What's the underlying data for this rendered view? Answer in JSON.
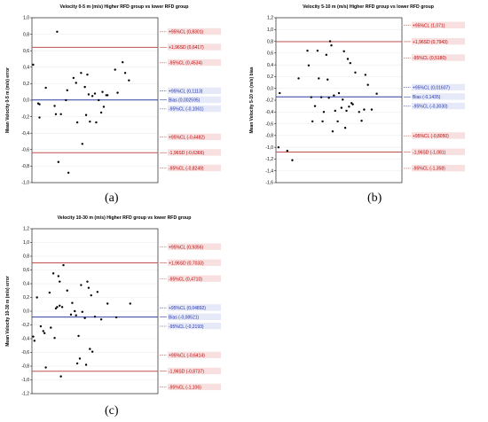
{
  "panel_labels": [
    "(a)",
    "(b)",
    "(c)"
  ],
  "colors": {
    "sd_line": "#c0504d",
    "bias_line": "#2f3f9f",
    "ci_line": "#c0504d",
    "ci_line_blue": "#2f3f9f",
    "sd_text": "#c00000",
    "bias_text": "#1f2fb0",
    "label_bg": "#f8e0e0",
    "bias_label_bg": "#e6eaf8",
    "point": "#000000",
    "grid": "#e8e8e8"
  },
  "chart_data": [
    {
      "type": "scatter",
      "title": "Velocity 0-5 m (m/s) Higher RFD group vs lower RFD group",
      "ylabel": "Mean Velocity 0-5 m (m/s) error",
      "xlabel": "",
      "ylim": [
        -1.0,
        1.0
      ],
      "yticks": [
        "-1,0",
        "-0,8",
        "-0,6",
        "-0,4",
        "-0,2",
        "0,0",
        "0,2",
        "0,4",
        "0,6",
        "0,8",
        "1,0"
      ],
      "ytick_values": [
        -1.0,
        -0.8,
        -0.6,
        -0.4,
        -0.2,
        0.0,
        0.2,
        0.4,
        0.6,
        0.8,
        1.0
      ],
      "grid": true,
      "lines": [
        {
          "label": "+95%CL (0,8301)",
          "y": 0.8301,
          "kind": "ci"
        },
        {
          "label": "+1,96SD (0,6417)",
          "y": 0.6417,
          "kind": "sd"
        },
        {
          "label": "-95%CL (0,4534)",
          "y": 0.4534,
          "kind": "ci"
        },
        {
          "label": "+95%CL (0,1113)",
          "y": 0.1113,
          "kind": "ci_blue"
        },
        {
          "label": "Bias (0,002595)",
          "y": 0.002595,
          "kind": "bias"
        },
        {
          "label": "-95%CL (-0,1061)",
          "y": -0.1061,
          "kind": "ci_blue"
        },
        {
          "label": "+95%CL (-0,4482)",
          "y": -0.4482,
          "kind": "ci"
        },
        {
          "label": "-1,96SD (-0,6366)",
          "y": -0.6366,
          "kind": "sd"
        },
        {
          "label": "-95%CL (-0,8249)",
          "y": -0.8249,
          "kind": "ci"
        }
      ],
      "points": [
        {
          "x": 0.01,
          "y": 0.43
        },
        {
          "x": 0.05,
          "y": -0.04
        },
        {
          "x": 0.06,
          "y": -0.05
        },
        {
          "x": 0.06,
          "y": -0.21
        },
        {
          "x": 0.11,
          "y": 0.15
        },
        {
          "x": 0.18,
          "y": -0.07
        },
        {
          "x": 0.19,
          "y": -0.17
        },
        {
          "x": 0.2,
          "y": 0.83
        },
        {
          "x": 0.21,
          "y": -0.75
        },
        {
          "x": 0.23,
          "y": -0.17
        },
        {
          "x": 0.27,
          "y": 0.0
        },
        {
          "x": 0.28,
          "y": 0.12
        },
        {
          "x": 0.29,
          "y": -0.88
        },
        {
          "x": 0.33,
          "y": 0.27
        },
        {
          "x": 0.35,
          "y": 0.21
        },
        {
          "x": 0.36,
          "y": -0.27
        },
        {
          "x": 0.39,
          "y": 0.33
        },
        {
          "x": 0.4,
          "y": -0.53
        },
        {
          "x": 0.42,
          "y": 0.16
        },
        {
          "x": 0.43,
          "y": -0.18
        },
        {
          "x": 0.44,
          "y": 0.31
        },
        {
          "x": 0.45,
          "y": 0.07
        },
        {
          "x": 0.46,
          "y": -0.26
        },
        {
          "x": 0.48,
          "y": 0.05
        },
        {
          "x": 0.5,
          "y": 0.08
        },
        {
          "x": 0.51,
          "y": -0.27
        },
        {
          "x": 0.53,
          "y": 0.0
        },
        {
          "x": 0.55,
          "y": -0.15
        },
        {
          "x": 0.56,
          "y": 0.1
        },
        {
          "x": 0.57,
          "y": -0.08
        },
        {
          "x": 0.59,
          "y": 0.06
        },
        {
          "x": 0.6,
          "y": 0.06
        },
        {
          "x": 0.66,
          "y": 0.37
        },
        {
          "x": 0.68,
          "y": 0.09
        },
        {
          "x": 0.72,
          "y": 0.46
        },
        {
          "x": 0.74,
          "y": 0.33
        },
        {
          "x": 0.77,
          "y": 0.24
        }
      ]
    },
    {
      "type": "scatter",
      "title": "Velocity 5-10 m (m/s) Higher RFD group vs lower RFD group",
      "ylabel": "Mean Velocity 5-10 m (m/s) bias",
      "xlabel": "",
      "ylim": [
        -1.6,
        1.2
      ],
      "yticks": [
        "-1,6",
        "-1,4",
        "-1,2",
        "-1,0",
        "-0,8",
        "-0,6",
        "-0,4",
        "-0,2",
        "0,0",
        "0,2",
        "0,4",
        "0,6",
        "0,8",
        "1,0",
        "1,2"
      ],
      "ytick_values": [
        -1.6,
        -1.4,
        -1.2,
        -1.0,
        -0.8,
        -0.6,
        -0.4,
        -0.2,
        0.0,
        0.2,
        0.4,
        0.6,
        0.8,
        1.0,
        1.2
      ],
      "grid": true,
      "lines": [
        {
          "label": "+95%CL (1,071)",
          "y": 1.071,
          "kind": "ci"
        },
        {
          "label": "+1,96SD (0,7943)",
          "y": 0.7943,
          "kind": "sd"
        },
        {
          "label": "-95%CL (0,5180)",
          "y": 0.518,
          "kind": "ci"
        },
        {
          "label": "+95%CL (0,01607)",
          "y": 0.01607,
          "kind": "ci_blue"
        },
        {
          "label": "Bias (-0,1435)",
          "y": -0.1435,
          "kind": "bias"
        },
        {
          "label": "-95%CL (-0,3030)",
          "y": -0.303,
          "kind": "ci_blue"
        },
        {
          "label": "+95%CL (-0,8050)",
          "y": -0.805,
          "kind": "ci"
        },
        {
          "label": "-1,96SD (-1,081)",
          "y": -1.081,
          "kind": "sd"
        },
        {
          "label": "-95%CL (-1,358)",
          "y": -1.358,
          "kind": "ci"
        }
      ],
      "points": [
        {
          "x": 0.02,
          "y": -1.0
        },
        {
          "x": 0.03,
          "y": -0.08
        },
        {
          "x": 0.09,
          "y": -1.06
        },
        {
          "x": 0.13,
          "y": -1.22
        },
        {
          "x": 0.18,
          "y": 0.17
        },
        {
          "x": 0.25,
          "y": 0.64
        },
        {
          "x": 0.26,
          "y": 0.39
        },
        {
          "x": 0.28,
          "y": -0.15
        },
        {
          "x": 0.29,
          "y": -0.56
        },
        {
          "x": 0.31,
          "y": -0.3
        },
        {
          "x": 0.33,
          "y": 0.64
        },
        {
          "x": 0.34,
          "y": 0.17
        },
        {
          "x": 0.36,
          "y": -0.15
        },
        {
          "x": 0.37,
          "y": -0.56
        },
        {
          "x": 0.38,
          "y": -0.4
        },
        {
          "x": 0.4,
          "y": 0.57
        },
        {
          "x": 0.41,
          "y": 0.15
        },
        {
          "x": 0.42,
          "y": -0.16
        },
        {
          "x": 0.43,
          "y": 0.8
        },
        {
          "x": 0.44,
          "y": 0.73
        },
        {
          "x": 0.45,
          "y": -0.73
        },
        {
          "x": 0.46,
          "y": -0.12
        },
        {
          "x": 0.47,
          "y": -0.38
        },
        {
          "x": 0.49,
          "y": -0.56
        },
        {
          "x": 0.5,
          "y": -0.08
        },
        {
          "x": 0.52,
          "y": -0.33
        },
        {
          "x": 0.53,
          "y": -0.19
        },
        {
          "x": 0.54,
          "y": 0.63
        },
        {
          "x": 0.55,
          "y": -0.67
        },
        {
          "x": 0.56,
          "y": -0.38
        },
        {
          "x": 0.57,
          "y": 0.5
        },
        {
          "x": 0.58,
          "y": -0.31
        },
        {
          "x": 0.59,
          "y": 0.43
        },
        {
          "x": 0.6,
          "y": -0.25
        },
        {
          "x": 0.61,
          "y": -0.27
        },
        {
          "x": 0.63,
          "y": 0.27
        },
        {
          "x": 0.66,
          "y": -0.4
        },
        {
          "x": 0.68,
          "y": -0.55
        },
        {
          "x": 0.7,
          "y": -0.36
        },
        {
          "x": 0.71,
          "y": 0.23
        },
        {
          "x": 0.73,
          "y": 0.06
        },
        {
          "x": 0.76,
          "y": -0.36
        },
        {
          "x": 0.8,
          "y": -0.09
        }
      ]
    },
    {
      "type": "scatter",
      "title": "Velocity 10-30 m (m/s) Higher RFD group vs lower RFD group",
      "ylabel": "Mean Velocity 10-30 m (m/s) error",
      "xlabel": "",
      "ylim": [
        -1.2,
        1.2
      ],
      "yticks": [
        "-1,2",
        "-1,0",
        "-0,8",
        "-0,6",
        "-0,4",
        "-0,2",
        "0,0",
        "0,2",
        "0,4",
        "0,6",
        "0,8",
        "1,0",
        "1,2"
      ],
      "ytick_values": [
        -1.2,
        -1.0,
        -0.8,
        -0.6,
        -0.4,
        -0.2,
        0.0,
        0.2,
        0.4,
        0.6,
        0.8,
        1.0,
        1.2
      ],
      "grid": true,
      "lines": [
        {
          "label": "+95%CL (0,9356)",
          "y": 0.9356,
          "kind": "ci"
        },
        {
          "label": "+1,96SD (0,7033)",
          "y": 0.7033,
          "kind": "sd"
        },
        {
          "label": "-95%CL (0,4710)",
          "y": 0.471,
          "kind": "ci"
        },
        {
          "label": "+95%CL (0,04892)",
          "y": 0.04892,
          "kind": "ci_blue"
        },
        {
          "label": "Bias (-0,08521)",
          "y": -0.08521,
          "kind": "bias"
        },
        {
          "label": "-95%CL (-0,2193)",
          "y": -0.2193,
          "kind": "ci_blue"
        },
        {
          "label": "+95%CL (-0,6414)",
          "y": -0.6414,
          "kind": "ci"
        },
        {
          "label": "-1,96SD (-0,8737)",
          "y": -0.8737,
          "kind": "sd"
        },
        {
          "label": "-95%CL (-1,106)",
          "y": -1.106,
          "kind": "ci"
        }
      ],
      "points": [
        {
          "x": 0.01,
          "y": -0.37
        },
        {
          "x": 0.02,
          "y": -0.43
        },
        {
          "x": 0.04,
          "y": 0.2
        },
        {
          "x": 0.07,
          "y": -0.22
        },
        {
          "x": 0.09,
          "y": -0.29
        },
        {
          "x": 0.1,
          "y": -0.32
        },
        {
          "x": 0.11,
          "y": -0.82
        },
        {
          "x": 0.14,
          "y": 0.27
        },
        {
          "x": 0.15,
          "y": -0.24
        },
        {
          "x": 0.17,
          "y": 0.55
        },
        {
          "x": 0.18,
          "y": -0.39
        },
        {
          "x": 0.19,
          "y": 0.04
        },
        {
          "x": 0.2,
          "y": 0.06
        },
        {
          "x": 0.21,
          "y": 0.51
        },
        {
          "x": 0.22,
          "y": 0.43
        },
        {
          "x": 0.22,
          "y": 0.08
        },
        {
          "x": 0.23,
          "y": -0.95
        },
        {
          "x": 0.24,
          "y": 0.06
        },
        {
          "x": 0.25,
          "y": 0.67
        },
        {
          "x": 0.28,
          "y": 0.3
        },
        {
          "x": 0.31,
          "y": -0.05
        },
        {
          "x": 0.32,
          "y": 0.12
        },
        {
          "x": 0.34,
          "y": 0.0
        },
        {
          "x": 0.35,
          "y": -0.06
        },
        {
          "x": 0.36,
          "y": -0.76
        },
        {
          "x": 0.37,
          "y": -0.36
        },
        {
          "x": 0.38,
          "y": -0.69
        },
        {
          "x": 0.39,
          "y": 0.38
        },
        {
          "x": 0.4,
          "y": -0.01
        },
        {
          "x": 0.42,
          "y": -0.1
        },
        {
          "x": 0.43,
          "y": -0.78
        },
        {
          "x": 0.44,
          "y": 0.43
        },
        {
          "x": 0.45,
          "y": 0.34
        },
        {
          "x": 0.46,
          "y": -0.55
        },
        {
          "x": 0.47,
          "y": 0.23
        },
        {
          "x": 0.48,
          "y": -0.59
        },
        {
          "x": 0.5,
          "y": -0.08
        },
        {
          "x": 0.52,
          "y": 0.28
        },
        {
          "x": 0.55,
          "y": -0.12
        },
        {
          "x": 0.6,
          "y": 0.11
        },
        {
          "x": 0.67,
          "y": -0.09
        },
        {
          "x": 0.78,
          "y": 0.11
        }
      ]
    }
  ]
}
